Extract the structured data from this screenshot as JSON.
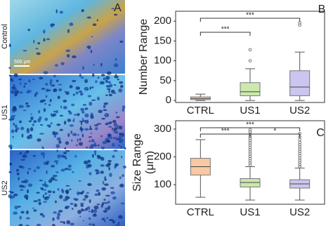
{
  "panel_a": {
    "label": "A",
    "rows": [
      "Control",
      "US1",
      "US2"
    ],
    "scale_bar": "500 μm"
  },
  "chart_data": [
    {
      "type": "box",
      "panel_label": "B",
      "ylabel": [
        "Number Range"
      ],
      "categories": [
        "CTRL",
        "US1",
        "US2"
      ],
      "colors": [
        "#f8c9a4",
        "#cbe8ad",
        "#cbc6ef"
      ],
      "boxes": [
        {
          "min": 0,
          "q1": 2,
          "median": 5,
          "q3": 9,
          "max": 16,
          "outliers": []
        },
        {
          "min": 0,
          "q1": 12,
          "median": 22,
          "q3": 45,
          "max": 80,
          "outliers": [
            100,
            128
          ]
        },
        {
          "min": 0,
          "q1": 12,
          "median": 34,
          "q3": 75,
          "max": 122,
          "outliers": [
            190,
            196
          ]
        }
      ],
      "ylim": [
        -5,
        225
      ],
      "yticks": [
        0,
        50,
        100,
        150,
        200
      ],
      "grid": false,
      "annotations": [
        {
          "text": "***",
          "from": "CTRL",
          "to": "US1"
        },
        {
          "text": "***",
          "from": "CTRL",
          "to": "US2"
        }
      ]
    },
    {
      "type": "box",
      "panel_label": "C",
      "ylabel": [
        "Size Range",
        "(μm)"
      ],
      "categories": [
        "CTRL",
        "US1",
        "US2"
      ],
      "colors": [
        "#f8c9a4",
        "#cbe8ad",
        "#cbc6ef"
      ],
      "boxes": [
        {
          "min": 55,
          "q1": 135,
          "median": 165,
          "q3": 195,
          "max": 262,
          "outliers": []
        },
        {
          "min": 45,
          "q1": 92,
          "median": 108,
          "q3": 122,
          "max": 165,
          "outliers": [
            170,
            178,
            186,
            194,
            202,
            210,
            218,
            226,
            234,
            242,
            250,
            258,
            266,
            274,
            282,
            290,
            298
          ]
        },
        {
          "min": 45,
          "q1": 88,
          "median": 103,
          "q3": 118,
          "max": 160,
          "outliers": [
            165,
            172,
            180,
            188,
            196,
            204,
            212,
            220,
            228,
            236,
            244,
            252,
            262,
            272,
            284
          ]
        }
      ],
      "ylim": [
        30,
        330
      ],
      "yticks": [
        100,
        200,
        300
      ],
      "grid": false,
      "annotations": [
        {
          "text": "***",
          "from": "CTRL",
          "to": "US1"
        },
        {
          "text": "*",
          "from": "US1",
          "to": "US2"
        },
        {
          "text": "***",
          "from": "CTRL",
          "to": "US2"
        }
      ]
    }
  ]
}
